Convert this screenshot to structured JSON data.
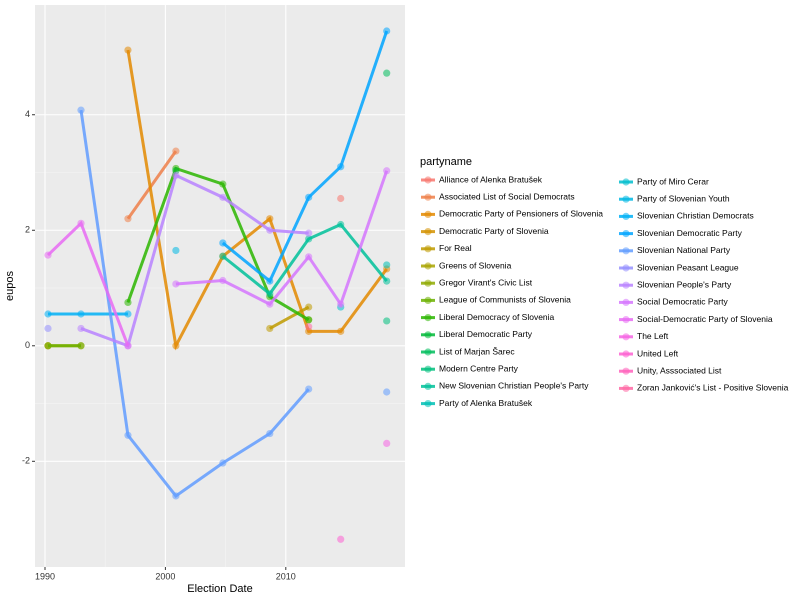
{
  "chart_data": {
    "type": "line",
    "x_label": "Election Date",
    "y_label": "eupos",
    "legend_title": "partyname",
    "x": [
      1990.25,
      1992.99,
      1996.89,
      2000.87,
      2004.77,
      2008.67,
      2011.9,
      2014.56,
      2018.38
    ],
    "xlim": [
      1989.17,
      2019.9
    ],
    "xticks": [
      1990,
      2000,
      2010
    ],
    "ylim": [
      -3.83,
      5.9
    ],
    "yticks": [
      -2,
      0,
      2,
      4
    ],
    "grid": true,
    "legend": "right",
    "series": [
      {
        "name": "Alliance of Alenka Bratušek",
        "color": "#F8766D",
        "values": [
          null,
          null,
          null,
          null,
          null,
          null,
          null,
          2.55,
          null
        ]
      },
      {
        "name": "Associated List of Social Democrats",
        "color": "#EF7F49",
        "values": [
          null,
          null,
          2.2,
          3.37,
          null,
          null,
          null,
          null,
          null
        ]
      },
      {
        "name": "Democratic Party of Pensioners of Slovenia",
        "color": "#E38900",
        "values": [
          null,
          null,
          5.12,
          0.0,
          1.55,
          2.2,
          0.25,
          0.25,
          1.33
        ]
      },
      {
        "name": "Democratic Party of Slovenia",
        "color": "#D49200",
        "values": [
          0.0,
          null,
          null,
          null,
          null,
          null,
          null,
          null,
          null
        ]
      },
      {
        "name": "For Real",
        "color": "#C09B00",
        "values": [
          null,
          null,
          null,
          null,
          null,
          0.3,
          0.67,
          null,
          null
        ]
      },
      {
        "name": "Greens of Slovenia",
        "color": "#A9A400",
        "values": [
          0.0,
          0.0,
          null,
          null,
          null,
          null,
          null,
          null,
          null
        ]
      },
      {
        "name": "Gregor Virant's Civic List",
        "color": "#8FAA00",
        "values": [
          null,
          null,
          null,
          null,
          null,
          null,
          0.45,
          null,
          null
        ]
      },
      {
        "name": "League of Communists of Slovenia",
        "color": "#6BB100",
        "values": [
          0.0,
          0.0,
          null,
          null,
          null,
          null,
          null,
          null,
          null
        ]
      },
      {
        "name": "Liberal Democracy of Slovenia",
        "color": "#2CB600",
        "values": [
          null,
          null,
          0.75,
          3.07,
          2.8,
          0.85,
          0.45,
          null,
          null
        ]
      },
      {
        "name": "Liberal Democratic Party",
        "color": "#00BA38",
        "values": [
          null,
          null,
          null,
          3.03,
          null,
          null,
          null,
          null,
          null
        ]
      },
      {
        "name": "List of Marjan Šarec",
        "color": "#00BD5C",
        "values": [
          null,
          null,
          null,
          null,
          null,
          null,
          null,
          null,
          4.72
        ]
      },
      {
        "name": "Modern Centre Party",
        "color": "#00BF7D",
        "values": [
          null,
          null,
          null,
          null,
          null,
          null,
          null,
          null,
          0.43
        ]
      },
      {
        "name": "New Slovenian Christian People's Party",
        "color": "#00C19A",
        "values": [
          null,
          null,
          null,
          null,
          1.55,
          0.9,
          1.85,
          2.1,
          1.12
        ]
      },
      {
        "name": "Party of Alenka Bratušek",
        "color": "#00C0B5",
        "values": [
          null,
          null,
          null,
          null,
          null,
          null,
          null,
          null,
          1.4
        ]
      },
      {
        "name": "Party of Miro Cerar",
        "color": "#00BDCD",
        "values": [
          null,
          null,
          null,
          null,
          null,
          null,
          null,
          0.67,
          null
        ]
      },
      {
        "name": "Party of Slovenian Youth",
        "color": "#00B8E4",
        "values": [
          null,
          null,
          null,
          1.65,
          null,
          null,
          null,
          null,
          null
        ]
      },
      {
        "name": "Slovenian Christian Democrats",
        "color": "#00B0F6",
        "values": [
          0.55,
          0.55,
          0.55,
          null,
          null,
          null,
          null,
          null,
          null
        ]
      },
      {
        "name": "Slovenian Democratic Party",
        "color": "#00A5FF",
        "values": [
          null,
          null,
          null,
          null,
          1.78,
          1.12,
          2.57,
          3.1,
          5.45
        ]
      },
      {
        "name": "Slovenian National Party",
        "color": "#619CFF",
        "values": [
          null,
          4.08,
          -1.55,
          -2.6,
          -2.03,
          -1.52,
          -0.75,
          null,
          -0.8
        ]
      },
      {
        "name": "Slovenian Peasant League",
        "color": "#9590FF",
        "values": [
          0.3,
          null,
          null,
          null,
          null,
          null,
          null,
          null,
          null
        ]
      },
      {
        "name": "Slovenian People's Party",
        "color": "#B983FF",
        "values": [
          null,
          0.3,
          0.0,
          2.95,
          2.57,
          2.0,
          1.95,
          null,
          null
        ]
      },
      {
        "name": "Social Democratic Party",
        "color": "#D575FE",
        "values": [
          null,
          null,
          null,
          1.07,
          1.13,
          0.72,
          1.54,
          0.72,
          3.03
        ]
      },
      {
        "name": "Social-Democratic Party of Slovenia",
        "color": "#E76BF3",
        "values": [
          1.57,
          2.12,
          0.0,
          null,
          null,
          null,
          null,
          null,
          null
        ]
      },
      {
        "name": "The Left",
        "color": "#F564E3",
        "values": [
          null,
          null,
          null,
          null,
          null,
          null,
          null,
          null,
          -1.69
        ]
      },
      {
        "name": "United Left",
        "color": "#FD61D1",
        "values": [
          null,
          null,
          null,
          null,
          null,
          null,
          null,
          -3.35,
          null
        ]
      },
      {
        "name": "Unity, Asssociated List",
        "color": "#FF62BC",
        "values": [
          null,
          null,
          null,
          null,
          null,
          null,
          null,
          null,
          null
        ]
      },
      {
        "name": "Zoran Janković's List - Positive Slovenia",
        "color": "#FF67A4",
        "values": [
          null,
          null,
          null,
          null,
          null,
          null,
          0.33,
          null,
          null
        ]
      }
    ]
  }
}
